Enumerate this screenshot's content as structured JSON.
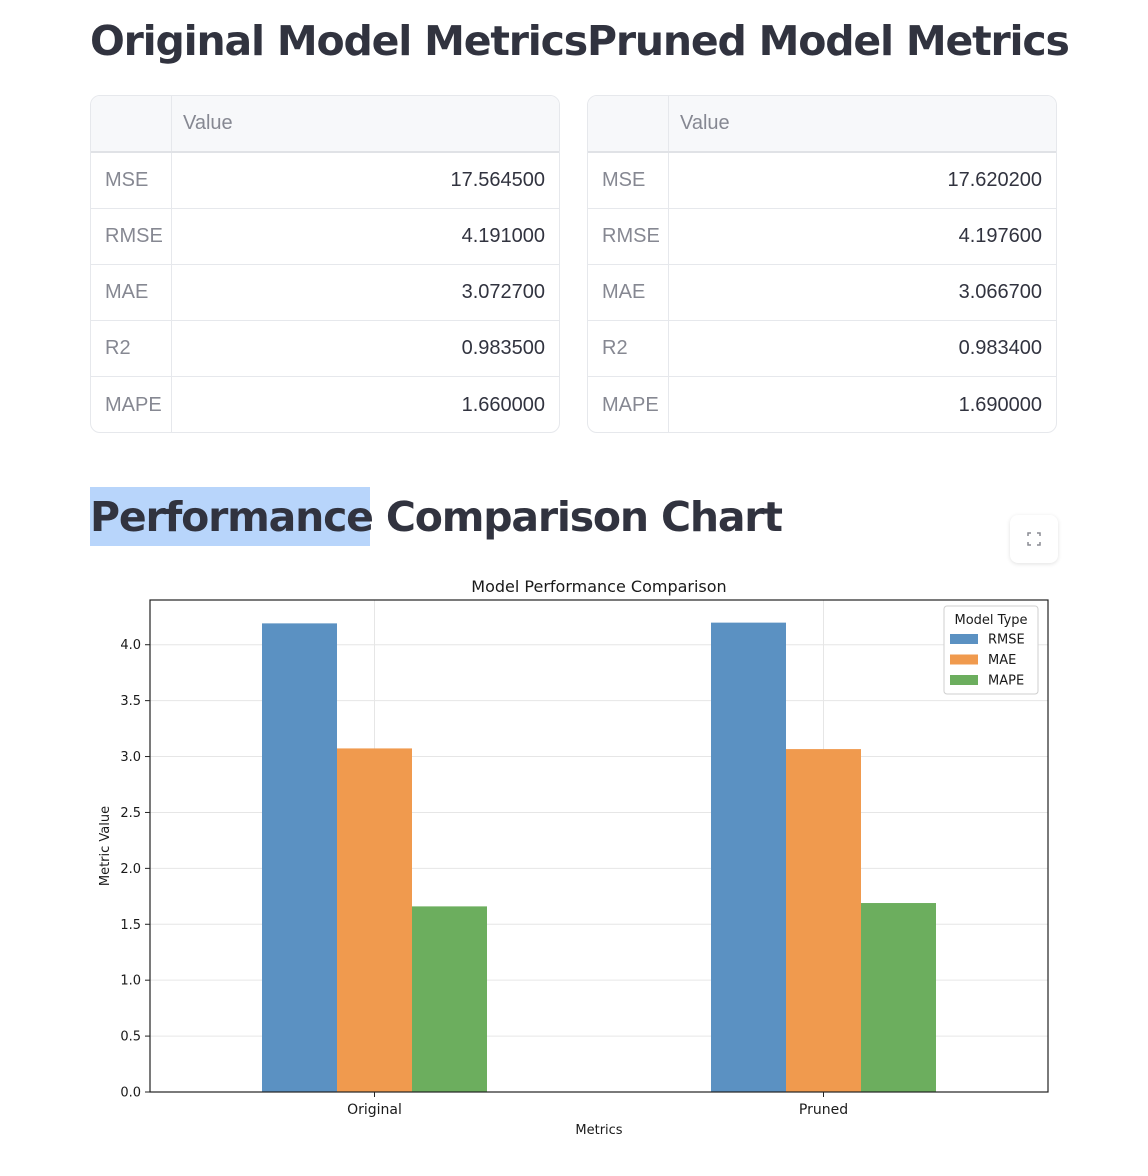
{
  "original": {
    "title": "Original Model Metrics",
    "header": "Value",
    "rows": [
      {
        "metric": "MSE",
        "value": "17.564500"
      },
      {
        "metric": "RMSE",
        "value": "4.191000"
      },
      {
        "metric": "MAE",
        "value": "3.072700"
      },
      {
        "metric": "R2",
        "value": "0.983500"
      },
      {
        "metric": "MAPE",
        "value": "1.660000"
      }
    ]
  },
  "pruned": {
    "title": "Pruned Model Metrics",
    "header": "Value",
    "rows": [
      {
        "metric": "MSE",
        "value": "17.620200"
      },
      {
        "metric": "RMSE",
        "value": "4.197600"
      },
      {
        "metric": "MAE",
        "value": "3.066700"
      },
      {
        "metric": "R2",
        "value": "0.983400"
      },
      {
        "metric": "MAPE",
        "value": "1.690000"
      }
    ]
  },
  "chart_section": {
    "title": "Performance Comparison Chart",
    "fullscreen_icon": "expand-icon"
  },
  "chart_data": {
    "type": "bar",
    "title": "Model Performance Comparison",
    "xlabel": "Metrics",
    "ylabel": "Metric Value",
    "categories": [
      "Original",
      "Pruned"
    ],
    "series": [
      {
        "name": "RMSE",
        "values": [
          4.191,
          4.1976
        ],
        "color": "#5b91c2"
      },
      {
        "name": "MAE",
        "values": [
          3.0727,
          3.0667
        ],
        "color": "#f09a4e"
      },
      {
        "name": "MAPE",
        "values": [
          1.66,
          1.69
        ],
        "color": "#6cae5e"
      }
    ],
    "ylim": [
      0,
      4.4
    ],
    "yticks": [
      "0.0",
      "0.5",
      "1.0",
      "1.5",
      "2.0",
      "2.5",
      "3.0",
      "3.5",
      "4.0"
    ],
    "legend_title": "Model Type",
    "legend_position": "top-right",
    "grid": true
  }
}
